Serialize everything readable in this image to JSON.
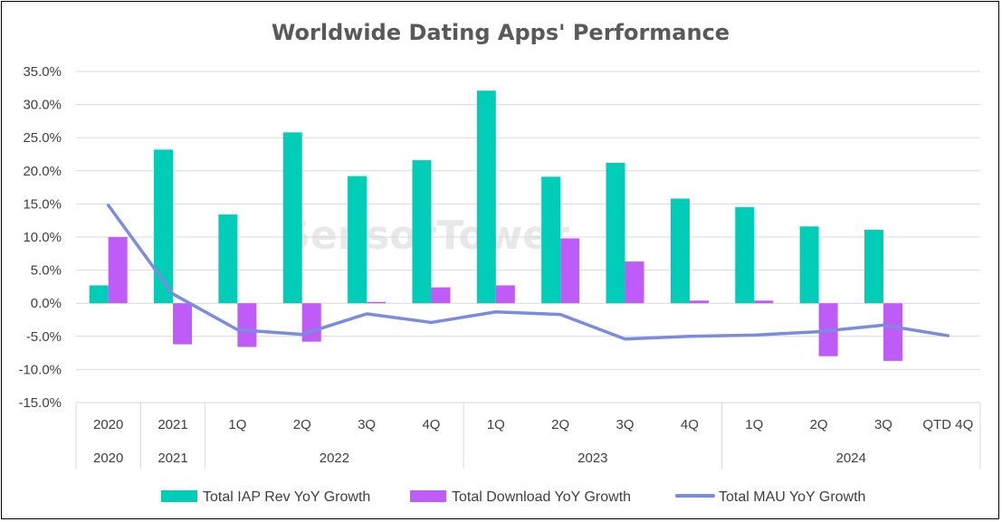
{
  "watermark": "SensorTower",
  "chart_data": {
    "type": "bar",
    "title": "Worldwide Dating Apps' Performance",
    "categories": [
      "2020",
      "2021",
      "1Q",
      "2Q",
      "3Q",
      "4Q",
      "1Q",
      "2Q",
      "3Q",
      "4Q",
      "1Q",
      "2Q",
      "3Q",
      "QTD 4Q"
    ],
    "groups": [
      {
        "label": "2020",
        "span": 1
      },
      {
        "label": "2021",
        "span": 1
      },
      {
        "label": "2022",
        "span": 4
      },
      {
        "label": "2023",
        "span": 4
      },
      {
        "label": "2024",
        "span": 4
      }
    ],
    "ylim": [
      -15,
      35
    ],
    "yticks": [
      -15,
      -10,
      -5,
      0,
      5,
      10,
      15,
      20,
      25,
      30,
      35
    ],
    "ytick_labels": [
      "-15.0%",
      "-10.0%",
      "-5.0%",
      "0.0%",
      "5.0%",
      "10.0%",
      "15.0%",
      "20.0%",
      "25.0%",
      "30.0%",
      "35.0%"
    ],
    "grid": true,
    "legend_position": "bottom",
    "series": [
      {
        "name": "Total IAP Rev YoY Growth",
        "kind": "bar",
        "color": "#00cdb8",
        "values": [
          2.7,
          23.2,
          13.4,
          25.8,
          19.2,
          21.6,
          32.1,
          19.1,
          21.2,
          15.8,
          14.5,
          11.6,
          11.1,
          null
        ]
      },
      {
        "name": "Total Download YoY Growth",
        "kind": "bar",
        "color": "#bf5cf7",
        "values": [
          10.0,
          -6.2,
          -6.6,
          -5.8,
          0.2,
          2.4,
          2.7,
          9.8,
          6.3,
          0.4,
          0.4,
          -8.0,
          -8.7,
          null
        ]
      },
      {
        "name": "Total MAU YoY Growth",
        "kind": "line",
        "color": "#7a8cde",
        "values": [
          14.8,
          1.4,
          -4.0,
          -4.7,
          -1.6,
          -2.9,
          -1.3,
          -1.7,
          -5.4,
          -5.0,
          -4.8,
          -4.3,
          -3.3,
          -4.9
        ]
      }
    ]
  }
}
